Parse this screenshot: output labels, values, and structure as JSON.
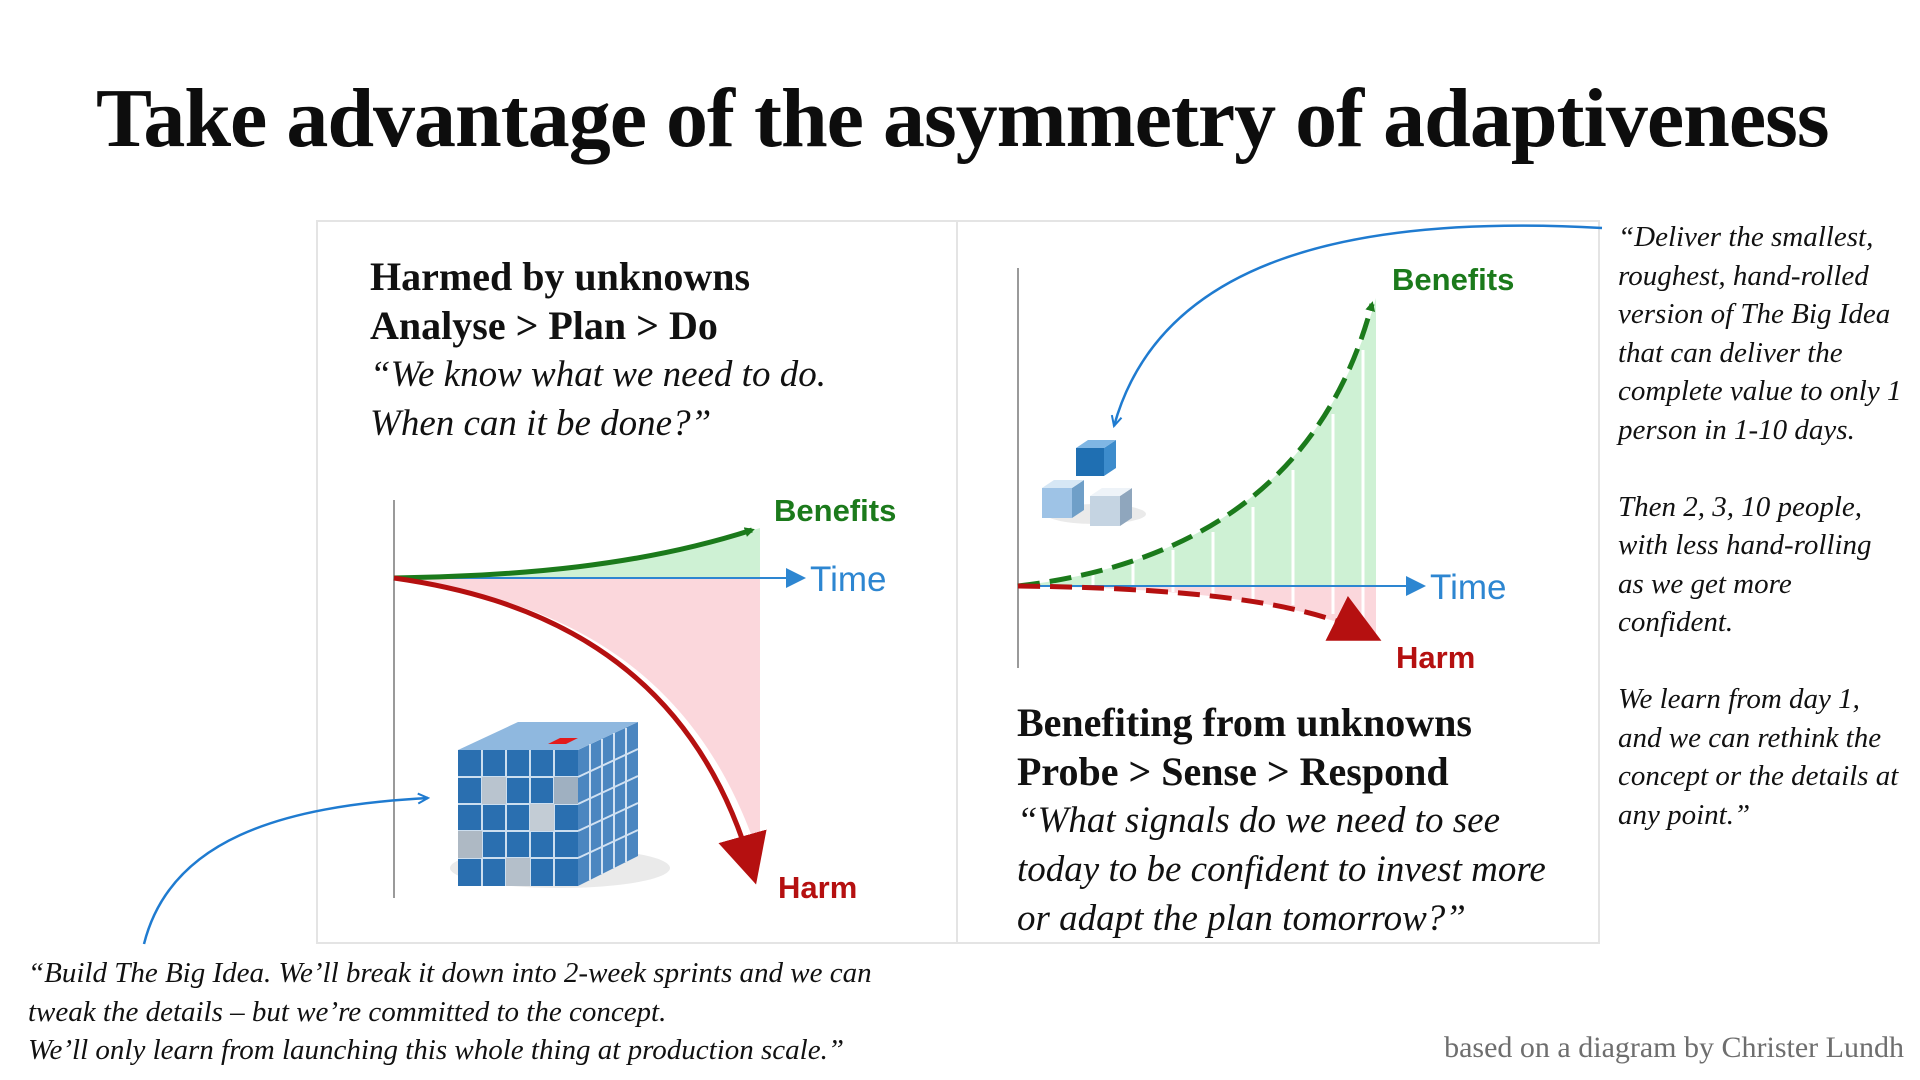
{
  "slide": {
    "title": "Take advantage of the asymmetry of adaptiveness",
    "credit": "based on a diagram by Christer Lundh"
  },
  "left_panel": {
    "heading": "Harmed by unknowns",
    "process": "Analyse > Plan > Do",
    "quote_lines": [
      "“We know what we need to do.",
      "When can it be done?”"
    ],
    "labels": {
      "benefits": "Benefits",
      "time": "Time",
      "harm": "Harm"
    },
    "colors": {
      "benefits": "#1b7a1b",
      "harm": "#b51010",
      "time_axis": "#2d86d1"
    }
  },
  "right_panel": {
    "heading": "Benefiting from unknowns",
    "process": "Probe > Sense > Respond",
    "quote_lines": [
      "“What signals do we need to see",
      "today to be confident to invest more",
      "or adapt the plan tomorrow?”"
    ],
    "labels": {
      "benefits": "Benefits",
      "time": "Time",
      "harm": "Harm"
    }
  },
  "side_quote": {
    "paragraphs": [
      [
        "“Deliver the smallest,",
        "roughest, hand-rolled",
        "version of The Big Idea",
        "that can deliver the",
        "complete value to only 1",
        "person in 1-10 days."
      ],
      [
        "Then 2, 3, 10 people,",
        "with less hand-rolling",
        "as we get more",
        "confident."
      ],
      [
        "We learn from day 1,",
        "and we can rethink the",
        "concept or the details at",
        "any point.”"
      ]
    ]
  },
  "bottom_quote": {
    "lines": [
      "“Build The Big Idea. We’ll break it down into 2-week sprints and we can",
      "tweak the details – but we’re committed to the concept.",
      "We’ll only learn from launching this whole thing at production scale.”"
    ]
  },
  "icons": {
    "left": "big-cube-icon",
    "right": "small-cubes-icon"
  }
}
